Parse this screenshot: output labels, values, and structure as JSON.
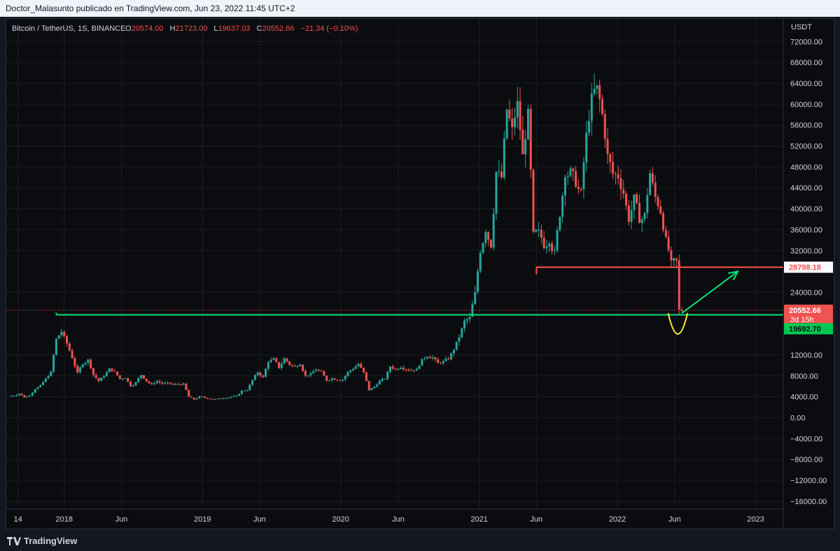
{
  "header": {
    "attribution": "Doctor_Malasunto publicado en TradingView.com, Jun 23, 2022 11:45 UTC+2"
  },
  "legend": {
    "symbol": "Bitcoin / TetherUS, 1S, BINANCE",
    "o_label": "O",
    "o_value": "20574.00",
    "h_label": "H",
    "h_value": "21723.00",
    "l_label": "L",
    "l_value": "19637.03",
    "c_label": "C",
    "c_value": "20552.66",
    "change": "−21.34 (−0.10%)"
  },
  "footer": {
    "brand": "TradingView"
  },
  "colors": {
    "up": "#26a69a",
    "down": "#ef5350",
    "support": "#00e676",
    "resistance": "#ff5252",
    "curve": "#ffeb3b",
    "arrow": "#00e676",
    "price_tag": "#ef5350",
    "support_tag": "#00c853"
  },
  "chart_data": {
    "type": "candlestick",
    "symbol": "Bitcoin / TetherUS",
    "interval": "1S",
    "currency_label": "USDT",
    "y_ticks": [
      72000,
      68000,
      64000,
      60000,
      56000,
      52000,
      48000,
      44000,
      40000,
      36000,
      32000,
      24000,
      12000,
      8000,
      4000,
      0,
      -4000,
      -8000,
      -12000,
      -16000
    ],
    "y_tick_labels": [
      "72000.00",
      "68000.00",
      "64000.00",
      "60000.00",
      "56000.00",
      "52000.00",
      "48000.00",
      "44000.00",
      "40000.00",
      "36000.00",
      "32000.00",
      "24000.00",
      "12000.00",
      "8000.00",
      "4000.00",
      "0.00",
      "−4000.00",
      "−8000.00",
      "−12000.00",
      "−16000.00"
    ],
    "ylim": [
      -17500,
      75000
    ],
    "x_ticks": [
      {
        "label": "14",
        "date": "2017-09-01"
      },
      {
        "label": "2018",
        "date": "2018-01-01"
      },
      {
        "label": "Jun",
        "date": "2018-06-01"
      },
      {
        "label": "2019",
        "date": "2019-01-01"
      },
      {
        "label": "Jun",
        "date": "2019-06-01"
      },
      {
        "label": "2020",
        "date": "2020-01-01"
      },
      {
        "label": "Jun",
        "date": "2020-06-01"
      },
      {
        "label": "2021",
        "date": "2021-01-01"
      },
      {
        "label": "Jun",
        "date": "2021-06-01"
      },
      {
        "label": "2022",
        "date": "2022-01-01"
      },
      {
        "label": "Jun",
        "date": "2022-06-01"
      },
      {
        "label": "2023",
        "date": "2023-01-01"
      }
    ],
    "xlim": [
      "2017-08-01",
      "2023-03-15"
    ],
    "weekly_close": [
      [
        "2017-08-14",
        4200
      ],
      [
        "2017-08-28",
        4600
      ],
      [
        "2017-09-11",
        3900
      ],
      [
        "2017-09-25",
        4300
      ],
      [
        "2017-10-09",
        5500
      ],
      [
        "2017-10-23",
        6100
      ],
      [
        "2017-11-06",
        7400
      ],
      [
        "2017-11-20",
        8700
      ],
      [
        "2017-12-04",
        15000
      ],
      [
        "2017-12-18",
        16500
      ],
      [
        "2018-01-01",
        14200
      ],
      [
        "2018-01-15",
        11500
      ],
      [
        "2018-01-29",
        8500
      ],
      [
        "2018-02-12",
        10400
      ],
      [
        "2018-02-26",
        11000
      ],
      [
        "2018-03-12",
        8200
      ],
      [
        "2018-03-26",
        7000
      ],
      [
        "2018-04-09",
        8000
      ],
      [
        "2018-04-23",
        9300
      ],
      [
        "2018-05-07",
        8700
      ],
      [
        "2018-05-21",
        7400
      ],
      [
        "2018-06-04",
        7700
      ],
      [
        "2018-06-18",
        6100
      ],
      [
        "2018-07-02",
        6700
      ],
      [
        "2018-07-16",
        8200
      ],
      [
        "2018-07-30",
        7000
      ],
      [
        "2018-08-13",
        6300
      ],
      [
        "2018-08-27",
        7000
      ],
      [
        "2018-09-10",
        6500
      ],
      [
        "2018-09-24",
        6600
      ],
      [
        "2018-10-08",
        6300
      ],
      [
        "2018-10-22",
        6400
      ],
      [
        "2018-11-05",
        6400
      ],
      [
        "2018-11-19",
        4000
      ],
      [
        "2018-12-03",
        3500
      ],
      [
        "2018-12-17",
        4000
      ],
      [
        "2018-12-31",
        3800
      ],
      [
        "2019-01-14",
        3600
      ],
      [
        "2019-01-28",
        3500
      ],
      [
        "2019-02-11",
        3700
      ],
      [
        "2019-02-25",
        3800
      ],
      [
        "2019-03-11",
        4000
      ],
      [
        "2019-03-25",
        4100
      ],
      [
        "2019-04-08",
        5100
      ],
      [
        "2019-04-22",
        5300
      ],
      [
        "2019-05-06",
        7200
      ],
      [
        "2019-05-20",
        8700
      ],
      [
        "2019-06-03",
        7700
      ],
      [
        "2019-06-17",
        10800
      ],
      [
        "2019-07-01",
        11200
      ],
      [
        "2019-07-15",
        9600
      ],
      [
        "2019-07-29",
        11300
      ],
      [
        "2019-08-12",
        10200
      ],
      [
        "2019-08-26",
        9700
      ],
      [
        "2019-09-09",
        10300
      ],
      [
        "2019-09-23",
        8000
      ],
      [
        "2019-10-07",
        8300
      ],
      [
        "2019-10-21",
        9200
      ],
      [
        "2019-11-04",
        8700
      ],
      [
        "2019-11-18",
        7100
      ],
      [
        "2019-12-02",
        7500
      ],
      [
        "2019-12-16",
        7200
      ],
      [
        "2019-12-30",
        7300
      ],
      [
        "2020-01-13",
        8700
      ],
      [
        "2020-01-27",
        9400
      ],
      [
        "2020-02-10",
        10300
      ],
      [
        "2020-02-24",
        8600
      ],
      [
        "2020-03-09",
        5300
      ],
      [
        "2020-03-23",
        5900
      ],
      [
        "2020-04-06",
        7000
      ],
      [
        "2020-04-20",
        7500
      ],
      [
        "2020-05-04",
        9800
      ],
      [
        "2020-05-18",
        9200
      ],
      [
        "2020-06-01",
        9700
      ],
      [
        "2020-06-15",
        9300
      ],
      [
        "2020-06-29",
        9100
      ],
      [
        "2020-07-13",
        9200
      ],
      [
        "2020-07-27",
        11000
      ],
      [
        "2020-08-10",
        11800
      ],
      [
        "2020-08-24",
        11500
      ],
      [
        "2020-09-07",
        10400
      ],
      [
        "2020-09-21",
        10700
      ],
      [
        "2020-10-05",
        11300
      ],
      [
        "2020-10-19",
        13100
      ],
      [
        "2020-11-02",
        15500
      ],
      [
        "2020-11-16",
        18400
      ],
      [
        "2020-11-30",
        19100
      ],
      [
        "2020-12-14",
        23800
      ],
      [
        "2020-12-28",
        32000
      ],
      [
        "2021-01-11",
        36000
      ],
      [
        "2021-01-25",
        33000
      ],
      [
        "2021-02-08",
        47000
      ],
      [
        "2021-02-22",
        46000
      ],
      [
        "2021-03-08",
        59000
      ],
      [
        "2021-03-22",
        55000
      ],
      [
        "2021-04-05",
        60000
      ],
      [
        "2021-04-19",
        50000
      ],
      [
        "2021-05-03",
        58000
      ],
      [
        "2021-05-17",
        35000
      ],
      [
        "2021-05-31",
        35500
      ],
      [
        "2021-06-14",
        33000
      ],
      [
        "2021-06-28",
        34000
      ],
      [
        "2021-07-12",
        31500
      ],
      [
        "2021-07-26",
        39000
      ],
      [
        "2021-08-09",
        47000
      ],
      [
        "2021-08-23",
        47000
      ],
      [
        "2021-09-06",
        45000
      ],
      [
        "2021-09-20",
        43000
      ],
      [
        "2021-10-04",
        54000
      ],
      [
        "2021-10-18",
        61000
      ],
      [
        "2021-11-01",
        63000
      ],
      [
        "2021-11-15",
        58000
      ],
      [
        "2021-11-29",
        50000
      ],
      [
        "2021-12-13",
        46700
      ],
      [
        "2021-12-27",
        46200
      ],
      [
        "2022-01-10",
        43000
      ],
      [
        "2022-01-24",
        38000
      ],
      [
        "2022-02-07",
        42000
      ],
      [
        "2022-02-21",
        38000
      ],
      [
        "2022-03-07",
        38800
      ],
      [
        "2022-03-21",
        46800
      ],
      [
        "2022-04-04",
        42200
      ],
      [
        "2022-04-18",
        39500
      ],
      [
        "2022-05-02",
        34000
      ],
      [
        "2022-05-16",
        29500
      ],
      [
        "2022-05-30",
        29900
      ],
      [
        "2022-06-13",
        20550
      ]
    ],
    "annotations": {
      "support": {
        "value": 19692.7,
        "label": "19692.70",
        "from": "2017-12-11"
      },
      "resistance": {
        "value": 28798.18,
        "label": "28798.18",
        "from": "2021-06-01"
      },
      "last_price": {
        "value": 20552.66,
        "label": "20552.66",
        "countdown": "3d 15h"
      },
      "projection_arrow": {
        "from": [
          "2022-06-20",
          20000
        ],
        "to": [
          "2022-11-15",
          28000
        ]
      },
      "curve_from": [
        "2022-05-15",
        20000
      ],
      "curve_to": [
        "2022-07-05",
        20000
      ],
      "curve_low": 16000
    }
  }
}
